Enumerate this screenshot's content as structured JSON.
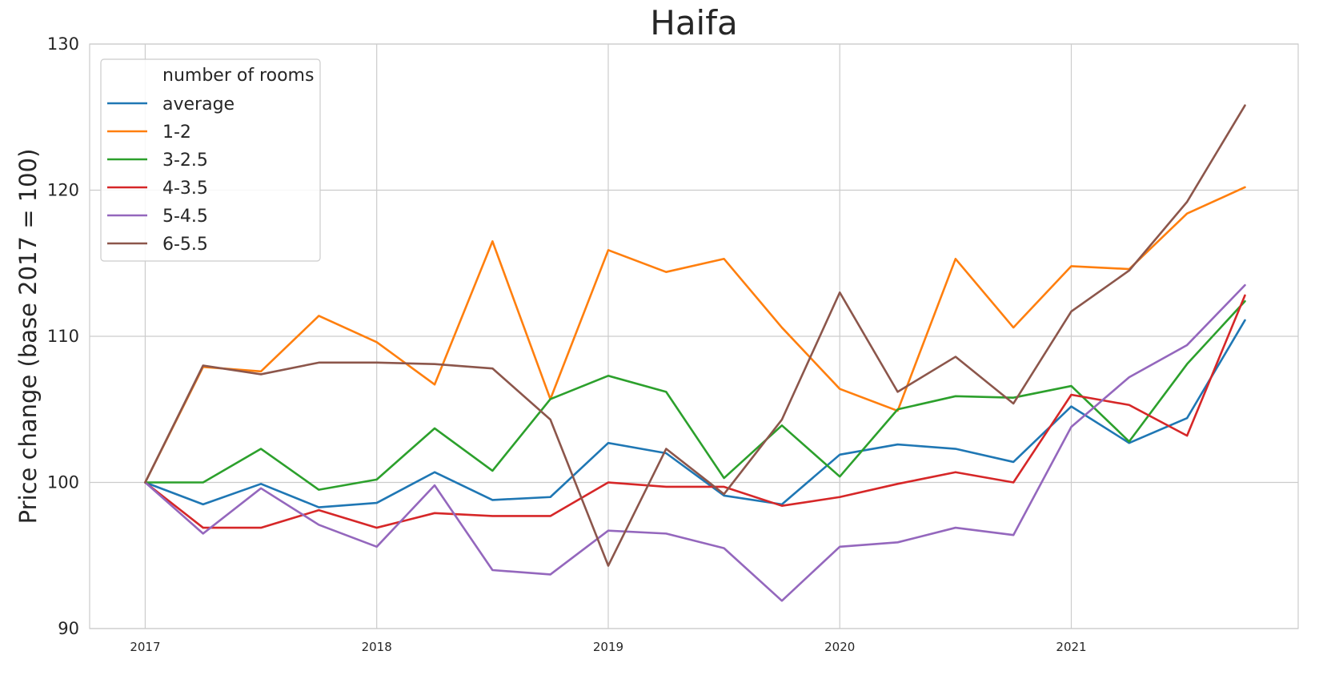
{
  "chart_data": {
    "type": "line",
    "title": "Haifa",
    "xlabel": "",
    "ylabel": "Price change (base 2017 = 100)",
    "xlim": [
      2016.76,
      2021.98
    ],
    "ylim": [
      90,
      130
    ],
    "x_ticks": [
      2017,
      2018,
      2019,
      2020,
      2021
    ],
    "x_tick_labels": [
      "2017",
      "2018",
      "2019",
      "2020",
      "2021"
    ],
    "y_ticks": [
      90,
      100,
      110,
      120,
      130
    ],
    "y_tick_labels": [
      "90",
      "100",
      "110",
      "120",
      "130"
    ],
    "grid": true,
    "legend": {
      "title": "number of rooms",
      "placement": "top-left"
    },
    "x": [
      2017.0,
      2017.25,
      2017.5,
      2017.75,
      2018.0,
      2018.25,
      2018.5,
      2018.75,
      2019.0,
      2019.25,
      2019.5,
      2019.75,
      2020.0,
      2020.25,
      2020.5,
      2020.75,
      2021.0,
      2021.25,
      2021.5,
      2021.75
    ],
    "series": [
      {
        "name": "average",
        "color": "#1f77b4",
        "values": [
          100,
          98.5,
          99.9,
          98.3,
          98.6,
          100.7,
          98.8,
          99.0,
          102.7,
          102.0,
          99.1,
          98.5,
          101.9,
          102.6,
          102.3,
          101.4,
          105.2,
          102.7,
          104.4,
          111.1
        ]
      },
      {
        "name": "1-2",
        "color": "#ff7f0e",
        "values": [
          100,
          107.9,
          107.6,
          111.4,
          109.6,
          106.7,
          116.5,
          105.7,
          115.9,
          114.4,
          115.3,
          110.6,
          106.4,
          104.9,
          115.3,
          110.6,
          114.8,
          114.6,
          118.4,
          120.2
        ]
      },
      {
        "name": "3-2.5",
        "color": "#2ca02c",
        "values": [
          100,
          100.0,
          102.3,
          99.5,
          100.2,
          103.7,
          100.8,
          105.7,
          107.3,
          106.2,
          100.3,
          103.9,
          100.4,
          105.0,
          105.9,
          105.8,
          106.6,
          102.8,
          108.1,
          112.4
        ]
      },
      {
        "name": "4-3.5",
        "color": "#d62728",
        "values": [
          100,
          96.9,
          96.9,
          98.1,
          96.9,
          97.9,
          97.7,
          97.7,
          100.0,
          99.7,
          99.7,
          98.4,
          99.0,
          99.9,
          100.7,
          100.0,
          106.0,
          105.3,
          103.2,
          112.8
        ]
      },
      {
        "name": "5-4.5",
        "color": "#9467bd",
        "values": [
          100,
          96.5,
          99.6,
          97.1,
          95.6,
          99.8,
          94.0,
          93.7,
          96.7,
          96.5,
          95.5,
          91.9,
          95.6,
          95.9,
          96.9,
          96.4,
          103.8,
          107.2,
          109.4,
          113.5
        ]
      },
      {
        "name": "6-5.5",
        "color": "#8c564b",
        "values": [
          100,
          108.0,
          107.4,
          108.2,
          108.2,
          108.1,
          107.8,
          104.3,
          94.3,
          102.3,
          99.2,
          104.3,
          113.0,
          106.2,
          108.6,
          105.4,
          111.7,
          114.5,
          119.2,
          125.8
        ]
      }
    ]
  }
}
